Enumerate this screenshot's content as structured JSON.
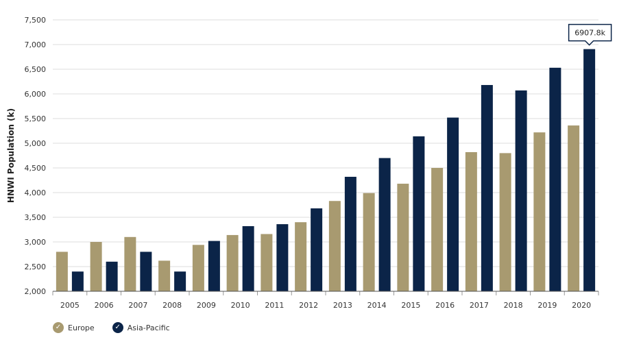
{
  "chart_data": {
    "type": "bar",
    "title": "",
    "xlabel": "",
    "ylabel": "HNWI Population (k)",
    "ylim": [
      2000,
      7500
    ],
    "yticks": [
      2000,
      2500,
      3000,
      3500,
      4000,
      4500,
      5000,
      5500,
      6000,
      6500,
      7000,
      7500
    ],
    "ytick_labels": [
      "2,000",
      "2,500",
      "3,000",
      "3,500",
      "4,000",
      "4,500",
      "5,000",
      "5,500",
      "6,000",
      "6,500",
      "7,000",
      "7,500"
    ],
    "grid": true,
    "legend_position": "bottom-left",
    "categories": [
      "2005",
      "2006",
      "2007",
      "2008",
      "2009",
      "2010",
      "2011",
      "2012",
      "2013",
      "2014",
      "2015",
      "2016",
      "2017",
      "2018",
      "2019",
      "2020"
    ],
    "series": [
      {
        "name": "Europe",
        "color": "#a89a70",
        "values": [
          2800,
          3000,
          3100,
          2620,
          2940,
          3140,
          3160,
          3400,
          3830,
          3990,
          4180,
          4500,
          4820,
          4800,
          5220,
          5360
        ]
      },
      {
        "name": "Asia-Pacific",
        "color": "#0b2448",
        "values": [
          2400,
          2600,
          2800,
          2400,
          3020,
          3320,
          3360,
          3680,
          4320,
          4700,
          5140,
          5520,
          6180,
          6070,
          6530,
          6907.8
        ]
      }
    ],
    "tooltip": {
      "text": "6907.8k",
      "series_index": 1,
      "category_index": 15
    }
  },
  "legend": {
    "items": [
      {
        "label": "Europe",
        "color": "#a89a70",
        "icon": "check-icon"
      },
      {
        "label": "Asia-Pacific",
        "color": "#0b2448",
        "icon": "check-icon"
      }
    ]
  }
}
